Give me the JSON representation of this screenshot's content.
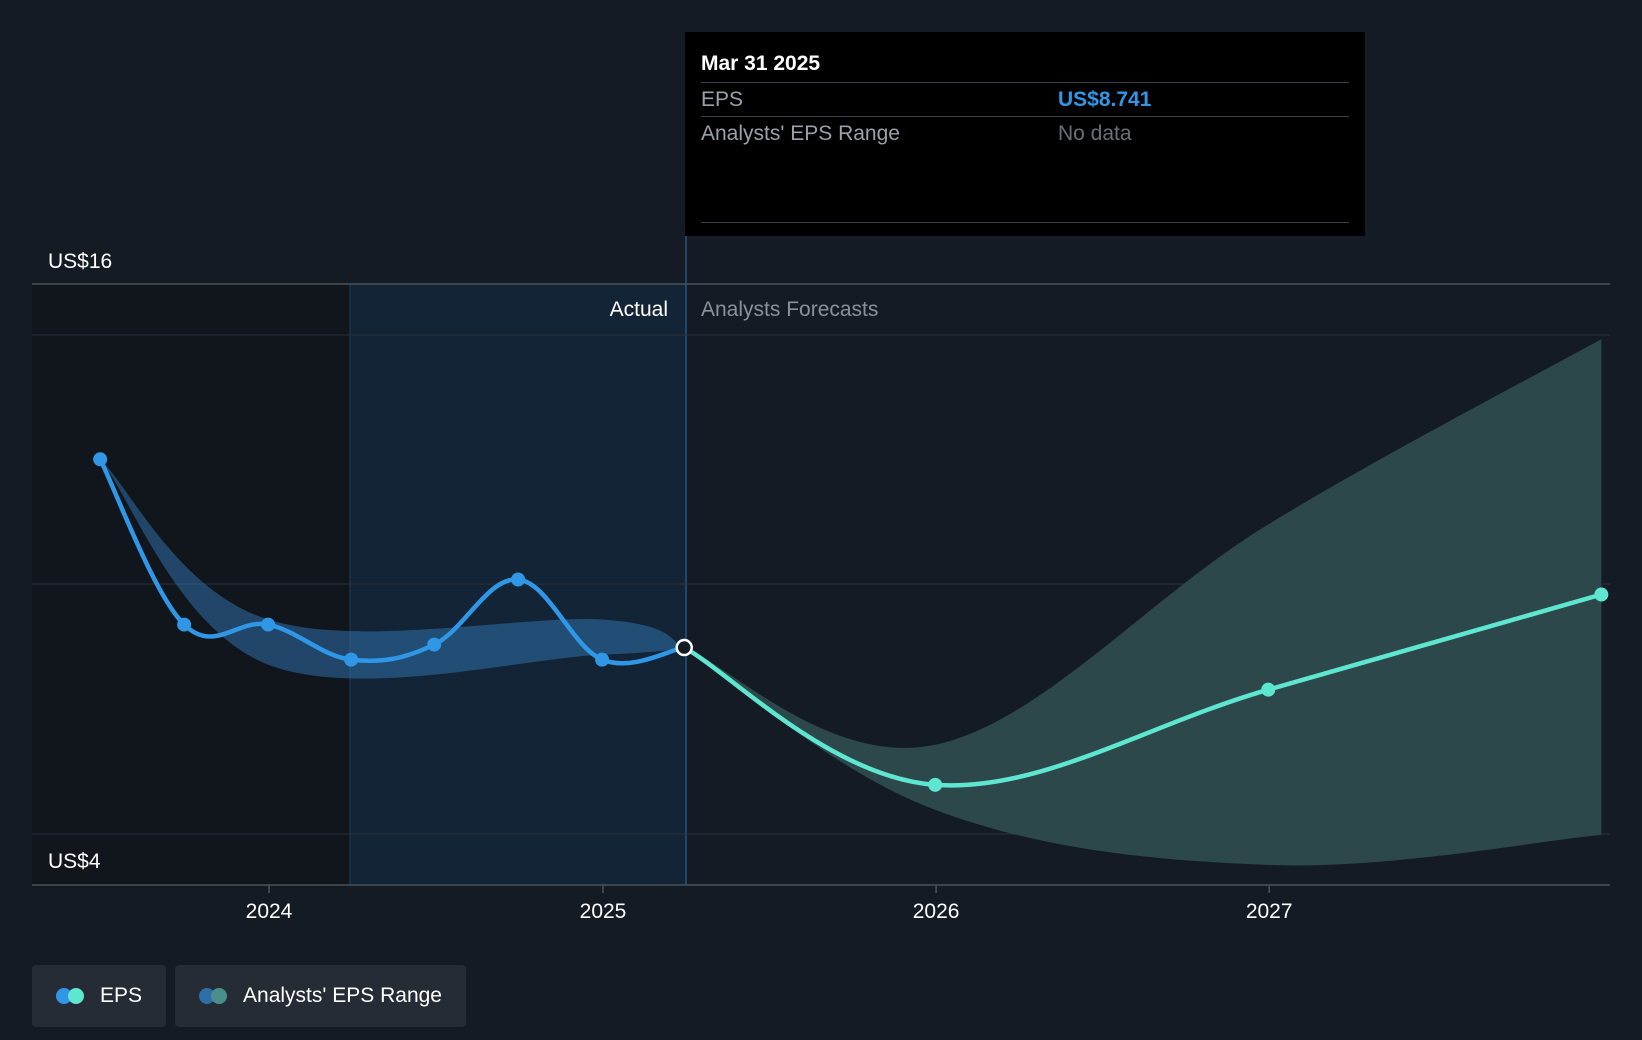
{
  "chart_data": {
    "type": "line",
    "ylim": [
      4,
      16
    ],
    "y_tick_labels": [
      "US$16",
      "US$4"
    ],
    "x_tick_labels": [
      "2024",
      "2025",
      "2026",
      "2027"
    ],
    "sections": {
      "actual": "Actual",
      "forecast": "Analysts Forecasts"
    },
    "series": [
      {
        "name": "EPS",
        "color": "#2f97e6",
        "points": [
          {
            "x": "2023-06-30",
            "y": 12.5
          },
          {
            "x": "2023-09-30",
            "y": 9.2
          },
          {
            "x": "2023-12-31",
            "y": 9.2
          },
          {
            "x": "2024-03-31",
            "y": 8.5
          },
          {
            "x": "2024-06-30",
            "y": 8.8
          },
          {
            "x": "2024-09-30",
            "y": 10.1
          },
          {
            "x": "2024-12-31",
            "y": 8.5
          },
          {
            "x": "2025-03-31",
            "y": 8.741
          }
        ]
      },
      {
        "name": "EPS",
        "color": "#5ee6d0",
        "points": [
          {
            "x": "2025-03-31",
            "y": 8.741
          },
          {
            "x": "2025-12-31",
            "y": 6.0
          },
          {
            "x": "2026-12-31",
            "y": 7.9
          },
          {
            "x": "2027-12-31",
            "y": 9.8
          }
        ]
      }
    ],
    "range_actual": {
      "name": "Analysts' EPS Range",
      "color": "#2f6fa8",
      "upper": [
        {
          "x": "2023-06-30",
          "y": 12.5
        },
        {
          "x": "2023-12-31",
          "y": 9.3
        },
        {
          "x": "2024-12-31",
          "y": 9.3
        },
        {
          "x": "2025-03-31",
          "y": 8.741
        }
      ],
      "lower": [
        {
          "x": "2023-06-30",
          "y": 12.5
        },
        {
          "x": "2023-12-31",
          "y": 8.4
        },
        {
          "x": "2024-12-31",
          "y": 8.6
        },
        {
          "x": "2025-03-31",
          "y": 8.741
        }
      ]
    },
    "range_forecast": {
      "name": "Analysts' EPS Range",
      "color": "#2d4b4d",
      "upper": [
        {
          "x": "2025-03-31",
          "y": 8.741
        },
        {
          "x": "2025-12-31",
          "y": 6.8
        },
        {
          "x": "2026-12-31",
          "y": 11.2
        },
        {
          "x": "2027-12-31",
          "y": 14.9
        }
      ],
      "lower": [
        {
          "x": "2025-03-31",
          "y": 8.741
        },
        {
          "x": "2025-12-31",
          "y": 5.5
        },
        {
          "x": "2026-12-31",
          "y": 4.4
        },
        {
          "x": "2027-12-31",
          "y": 5.0
        }
      ]
    },
    "highlight_point": {
      "x": "2025-03-31",
      "y": 8.741
    }
  },
  "tooltip": {
    "date": "Mar 31 2025",
    "rows": [
      {
        "label": "EPS",
        "value": "US$8.741"
      },
      {
        "label": "Analysts' EPS Range",
        "value": "No data"
      }
    ]
  },
  "legend": [
    {
      "label": "EPS",
      "colors": [
        "#2f97e6",
        "#5ee6d0"
      ]
    },
    {
      "label": "Analysts' EPS Range",
      "colors": [
        "#2f6fa8",
        "#4a8f8b"
      ]
    }
  ]
}
